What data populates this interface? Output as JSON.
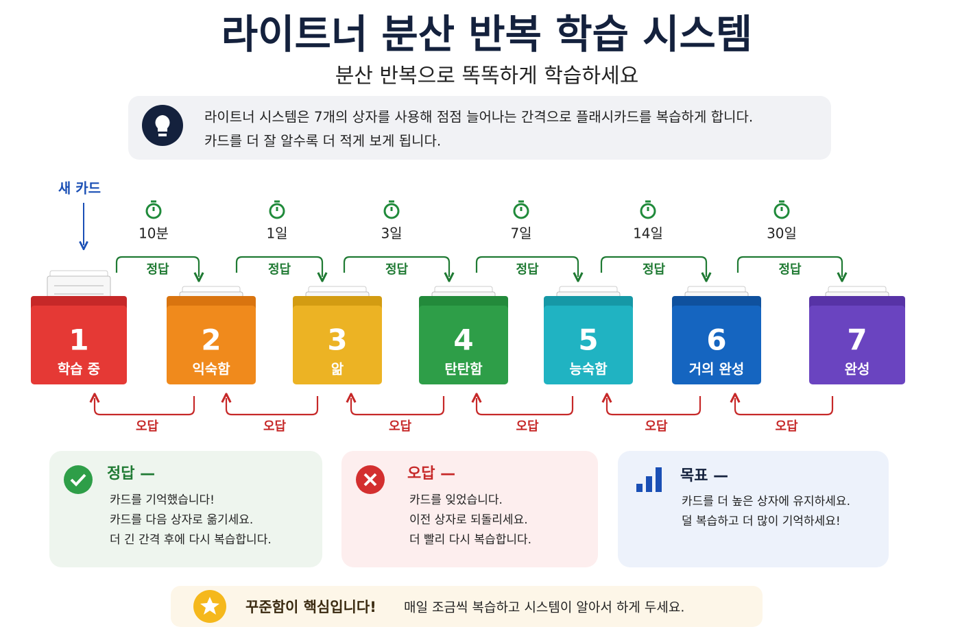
{
  "header": {
    "title": "라이트너 분산 반복 학습 시스템",
    "subtitle": "분산 반복으로 똑똑하게 학습하세요"
  },
  "info": {
    "lines": [
      "라이트너 시스템은 7개의 상자를 사용해 점점 늘어나는 간격으로 플래시카드를 복습하게 합니다.",
      "카드를 더 잘 알수록 더 적게 보게 됩니다."
    ]
  },
  "new_card": "새 카드",
  "boxes": [
    {
      "number": 1,
      "label": "학습 중"
    },
    {
      "number": 2,
      "label": "익숙함"
    },
    {
      "number": 3,
      "label": "앎"
    },
    {
      "number": 4,
      "label": "탄탄함"
    },
    {
      "number": 5,
      "label": "능숙함"
    },
    {
      "number": 6,
      "label": "거의 완성"
    },
    {
      "number": 7,
      "label": "완성"
    }
  ],
  "transitions": [
    {
      "interval": "10분",
      "correct": "정답",
      "wrong": "오답"
    },
    {
      "interval": "1일",
      "correct": "정답",
      "wrong": "오답"
    },
    {
      "interval": "3일",
      "correct": "정답",
      "wrong": "오답"
    },
    {
      "interval": "7일",
      "correct": "정답",
      "wrong": "오답"
    },
    {
      "interval": "14일",
      "correct": "정답",
      "wrong": "오답"
    },
    {
      "interval": "30일",
      "correct": "정답",
      "wrong": "오답"
    }
  ],
  "panels": {
    "correct": {
      "title": "정답 —",
      "lines": [
        "카드를 기억했습니다!",
        "카드를 다음 상자로 옮기세요.",
        "더 긴 간격 후에 다시 복습합니다."
      ]
    },
    "wrong": {
      "title": "오답 —",
      "lines": [
        "카드를 잊었습니다.",
        "이전 상자로 되돌리세요.",
        "더 빨리 다시 복습합니다."
      ]
    },
    "goal": {
      "title": "목표 —",
      "lines": [
        "카드를 더 높은 상자에 유지하세요.",
        "덜 복습하고 더 많이 기억하세요!"
      ]
    }
  },
  "footer": {
    "emphasis": "꾸준함이 핵심입니다!",
    "text": "매일 조금씩 복습하고 시스템이 알아서 하게 두세요."
  }
}
